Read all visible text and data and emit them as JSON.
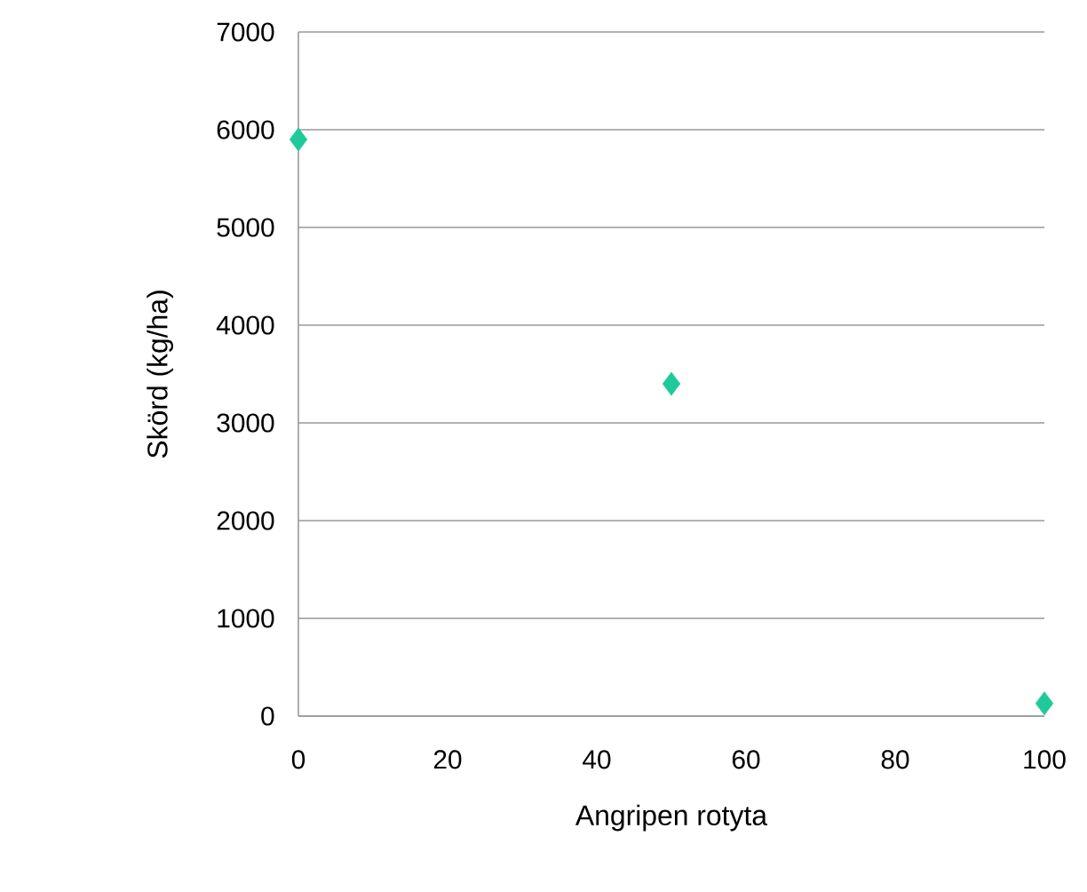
{
  "chart_data": {
    "type": "scatter",
    "xlabel": "Angripen rotyta",
    "ylabel": "Skörd (kg/ha)",
    "x": [
      0,
      50,
      100
    ],
    "values": [
      5900,
      3400,
      130
    ],
    "color": "#1fc99a",
    "marker": "diamond",
    "xlim": [
      0,
      100
    ],
    "xticks": [
      0,
      20,
      40,
      60,
      80,
      100
    ],
    "ylim": [
      0,
      7000
    ],
    "yticks": [
      0,
      1000,
      2000,
      3000,
      4000,
      5000,
      6000,
      7000
    ],
    "grid": "y"
  }
}
